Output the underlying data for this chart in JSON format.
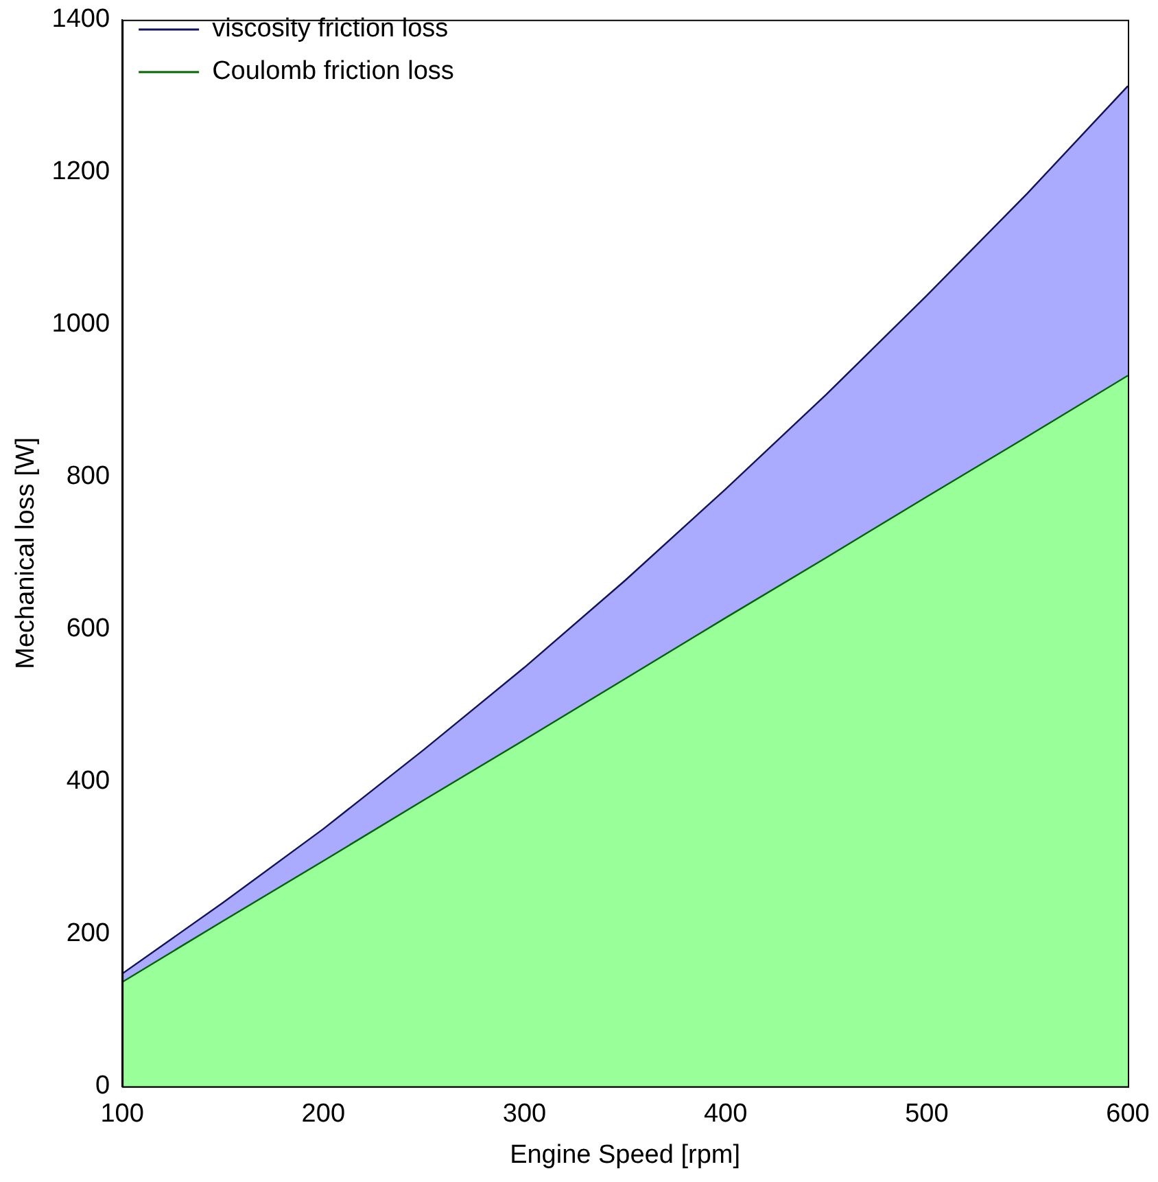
{
  "chart_data": {
    "type": "area",
    "stacked": true,
    "xlabel": "Engine Speed [rpm]",
    "ylabel": "Mechanical loss [W]",
    "x": [
      100,
      150,
      200,
      250,
      300,
      350,
      400,
      450,
      500,
      550,
      600
    ],
    "series": [
      {
        "name": "Coulomb friction loss",
        "color": "#99ff99",
        "values": [
          137,
          217,
          296,
          376,
          455,
          535,
          615,
          694,
          774,
          853,
          933
        ]
      },
      {
        "name": "viscosity friction loss",
        "color": "#aaaaff",
        "values": [
          11,
          24,
          42,
          66,
          95,
          129,
          169,
          214,
          264,
          319,
          380
        ]
      }
    ],
    "xlim": [
      100,
      600
    ],
    "xticks": [
      100,
      200,
      300,
      400,
      500,
      600
    ],
    "ylim": [
      0,
      1400
    ],
    "yticks": [
      0,
      200,
      400,
      600,
      800,
      1000,
      1200,
      1400
    ],
    "grid": false,
    "legend": "top left"
  }
}
